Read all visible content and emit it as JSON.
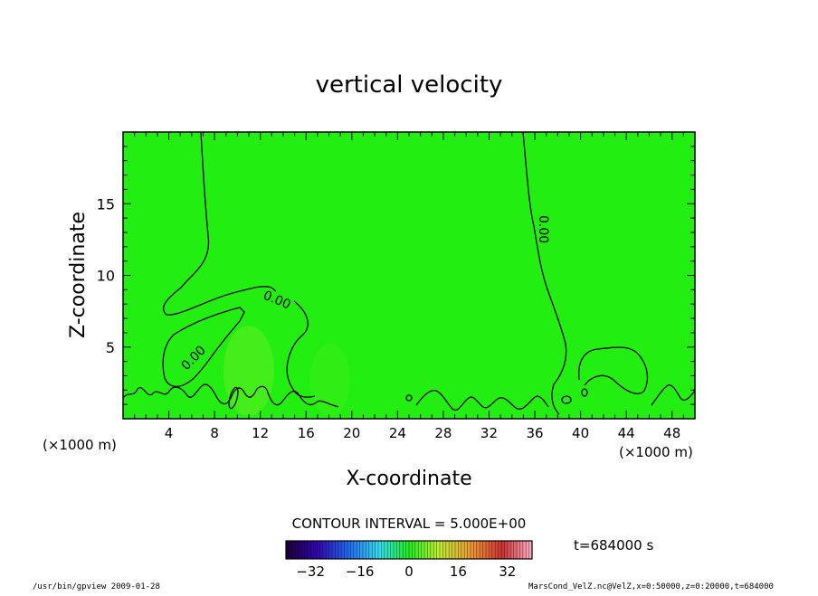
{
  "chart_data": {
    "type": "contour",
    "title": "vertical velocity",
    "xlabel": "X-coordinate",
    "ylabel": "Z-coordinate",
    "x_unit_left": "(×1000 m)",
    "x_unit_right": "(×1000 m)",
    "xlim": [
      0,
      50
    ],
    "ylim": [
      0,
      20
    ],
    "x_ticks": [
      "4",
      "8",
      "12",
      "16",
      "20",
      "24",
      "28",
      "32",
      "36",
      "40",
      "44",
      "48"
    ],
    "y_ticks": [
      "5",
      "10",
      "15"
    ],
    "x_tick_values": [
      4,
      8,
      12,
      16,
      20,
      24,
      28,
      32,
      36,
      40,
      44,
      48
    ],
    "y_tick_values": [
      5,
      10,
      15
    ],
    "contour_labels": [
      "0.00",
      "0.00",
      "0.00"
    ],
    "contour_interval": "CONTOUR INTERVAL = 5.000E+00",
    "time_label": "t=684000 s",
    "colorbar": {
      "ticks": [
        "−32",
        "−16",
        "0",
        "16",
        "32"
      ],
      "tick_values": [
        -32,
        -16,
        0,
        16,
        32
      ],
      "range": [
        -40,
        40
      ]
    },
    "footer_left": "/usr/bin/gpview  2009-01-28",
    "footer_right": "MarsCond_VelZ.nc@VelZ,x=0:50000,z=0:20000,t=684000",
    "background_color": "#22ee11",
    "grid": false
  }
}
